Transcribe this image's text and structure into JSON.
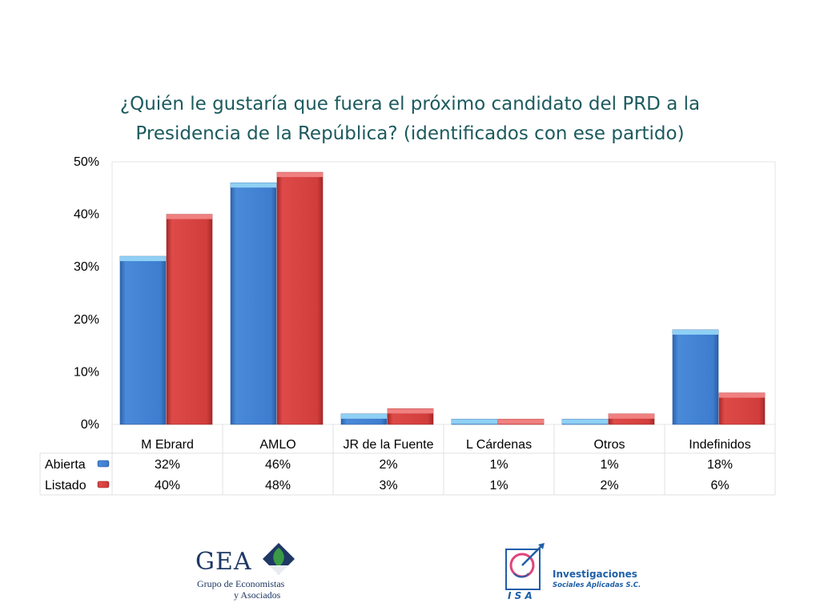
{
  "title_line1": "¿Quién le gustaría que fuera el próximo candidato del PRD a la",
  "title_line2": "Presidencia de la República? (identificados con ese partido)",
  "chart_data": {
    "type": "bar",
    "title": "¿Quién le gustaría que fuera el próximo candidato del PRD a la Presidencia de la República? (identificados con ese partido)",
    "categories": [
      "M Ebrard",
      "AMLO",
      "JR de la Fuente",
      "L Cárdenas",
      "Otros",
      "Indefinidos"
    ],
    "series": [
      {
        "name": "Abierta",
        "color": "#3f7fd0",
        "values": [
          32,
          46,
          2,
          1,
          1,
          18
        ],
        "labels": [
          "32%",
          "46%",
          "2%",
          "1%",
          "1%",
          "18%"
        ]
      },
      {
        "name": "Listado",
        "color": "#d23b3b",
        "values": [
          40,
          48,
          3,
          1,
          2,
          6
        ],
        "labels": [
          "40%",
          "48%",
          "3%",
          "1%",
          "2%",
          "6%"
        ]
      }
    ],
    "ylim": [
      0,
      50
    ],
    "yticks": [
      0,
      10,
      20,
      30,
      40,
      50
    ],
    "ytick_labels": [
      "0%",
      "10%",
      "20%",
      "30%",
      "40%",
      "50%"
    ],
    "xlabel": "",
    "ylabel": "",
    "legend": "data table below chart"
  },
  "logos": {
    "gea_name": "GEA",
    "gea_sub1": "Grupo de Economistas",
    "gea_sub2": "y Asociados",
    "isa_name": "Investigaciones",
    "isa_sub": "Sociales Aplicadas S.C.",
    "isa_mark_text": "I S A"
  }
}
